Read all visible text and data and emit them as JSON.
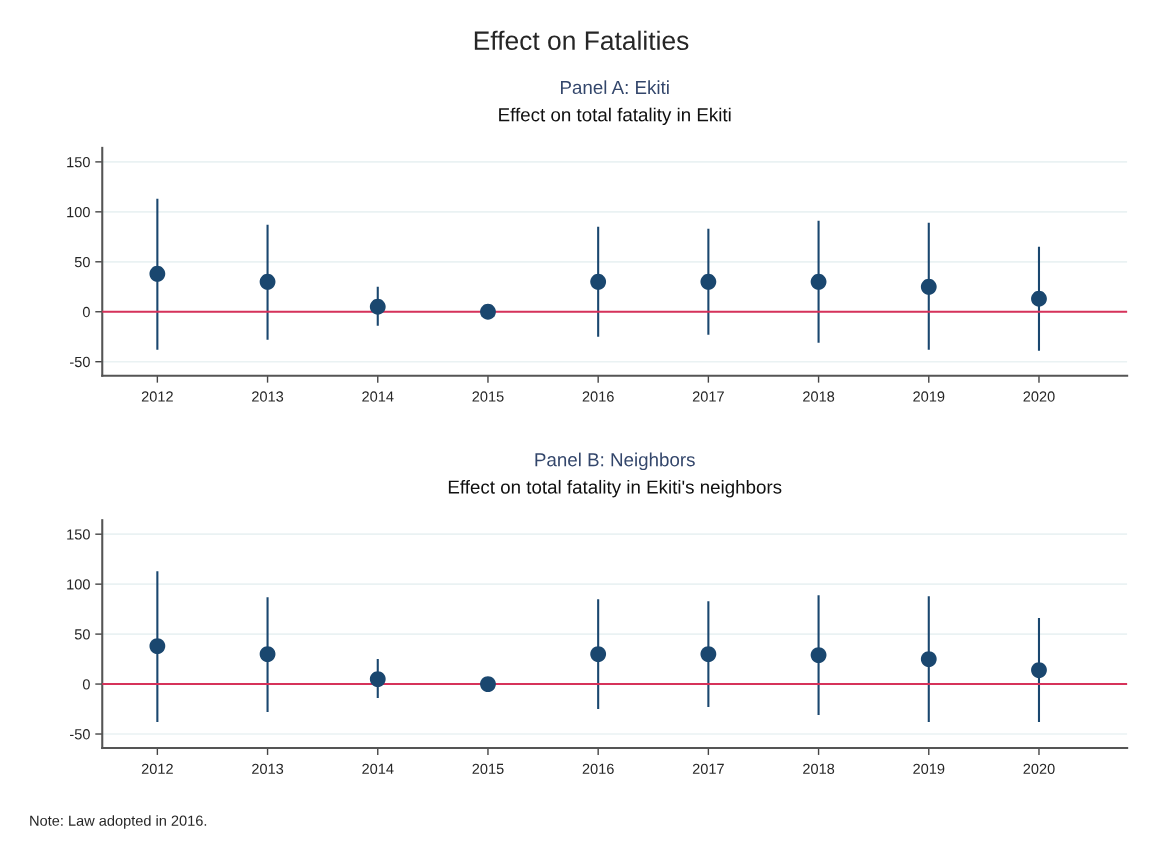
{
  "chart_data": [
    {
      "type": "scatter",
      "title": "Panel A: Ekiti",
      "subtitle": "Effect on total fatality in Ekiti",
      "annotations": [
        "Effect on Fatalities"
      ],
      "categories": [
        "2012",
        "2013",
        "2014",
        "2015",
        "2016",
        "2017",
        "2018",
        "2019",
        "2020"
      ],
      "series": [
        {
          "color": "#1a476f",
          "values": [
            38,
            30,
            5,
            0,
            30,
            30,
            30,
            25,
            13
          ],
          "errors": [
            [
              -38,
              113
            ],
            [
              -28,
              87
            ],
            [
              -14,
              25
            ],
            null,
            [
              -25,
              85
            ],
            [
              -23,
              83
            ],
            [
              -31,
              91
            ],
            [
              -38,
              89
            ],
            [
              -39,
              65
            ]
          ]
        }
      ],
      "ylim": [
        -64,
        164
      ],
      "yticks": [
        -50,
        0,
        50,
        100,
        150
      ],
      "grid": "y",
      "marker": "circle",
      "legend": false,
      "ref_lines": [
        {
          "axis": "y",
          "value": 0,
          "color": "#d6325a"
        }
      ]
    },
    {
      "type": "scatter",
      "title": "Panel B: Neighbors",
      "subtitle": "Effect on total fatality in Ekiti's neighbors",
      "annotations": [
        "Note: Law adopted in 2016."
      ],
      "categories": [
        "2012",
        "2013",
        "2014",
        "2015",
        "2016",
        "2017",
        "2018",
        "2019",
        "2020"
      ],
      "series": [
        {
          "color": "#1a476f",
          "values": [
            38,
            30,
            5,
            0,
            30,
            30,
            29,
            25,
            14
          ],
          "errors": [
            [
              -38,
              113
            ],
            [
              -28,
              87
            ],
            [
              -14,
              25
            ],
            null,
            [
              -25,
              85
            ],
            [
              -23,
              83
            ],
            [
              -31,
              89
            ],
            [
              -38,
              88
            ],
            [
              -38,
              66
            ]
          ]
        }
      ],
      "ylim": [
        -64,
        164
      ],
      "yticks": [
        -50,
        0,
        50,
        100,
        150
      ],
      "grid": "y",
      "marker": "circle",
      "legend": false,
      "ref_lines": [
        {
          "axis": "y",
          "value": 0,
          "color": "#d6325a"
        }
      ]
    }
  ]
}
